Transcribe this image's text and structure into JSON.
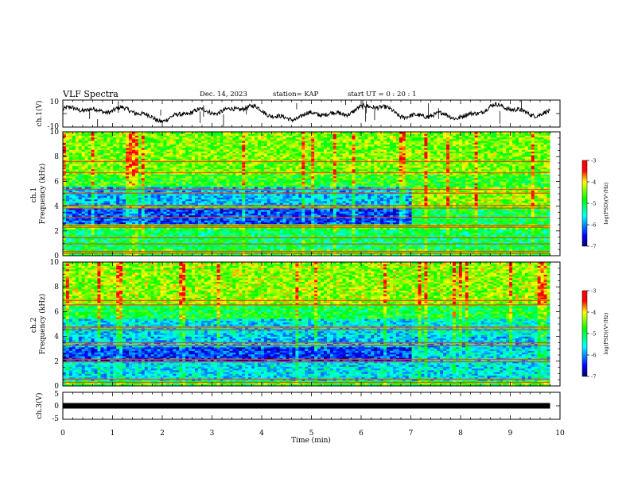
{
  "header": {
    "title": "VLF Spectra",
    "date": "Dec. 14, 2023",
    "station": "station= KAP",
    "start_ut": "start UT =  0 : 20 : 1"
  },
  "chart_data": [
    {
      "type": "line",
      "panel": "ch1-waveform",
      "ylabel": "ch.1(V)",
      "ylim": [
        -10,
        10
      ],
      "yticks": [
        "10",
        "-10"
      ],
      "xlim": [
        0,
        10
      ],
      "data_end_min": 9.8,
      "series_color": "#000000",
      "note_values": "envelope approx. between -6 and 8 V, drifting"
    },
    {
      "type": "heatmap",
      "panel": "ch1-spectrogram",
      "ylabel": "ch.1\nFrequency (kHz)",
      "ylim": [
        0,
        10
      ],
      "yticks": [
        "0",
        "2",
        "4",
        "6",
        "8",
        "10"
      ],
      "xlim": [
        0,
        10
      ],
      "data_end_min": 9.8,
      "break_min": 7.0,
      "colorbar": {
        "label": "log(PSD)(V²/Hz)",
        "range": [
          -7,
          -3
        ],
        "ticks": [
          "-3",
          "-4",
          "-5",
          "-6",
          "-7"
        ],
        "colors": [
          "#000080",
          "#0000ff",
          "#00ffff",
          "#00ff00",
          "#ffff00",
          "#ff0000",
          "#ff0000"
        ]
      }
    },
    {
      "type": "heatmap",
      "panel": "ch2-spectrogram",
      "ylabel": "ch.2\nFrequency (kHz)",
      "ylim": [
        0,
        10
      ],
      "yticks": [
        "0",
        "2",
        "4",
        "6",
        "8",
        "10"
      ],
      "xlim": [
        0,
        10
      ],
      "data_end_min": 9.8,
      "break_min": 7.0,
      "colorbar": {
        "label": "log(PSD)(V²/Hz)",
        "range": [
          -7,
          -3
        ],
        "ticks": [
          "-3",
          "-4",
          "-5",
          "-6",
          "-7"
        ]
      }
    },
    {
      "type": "line",
      "panel": "ch3-waveform",
      "ylabel": "ch.3(V)",
      "ylim": [
        -5,
        5
      ],
      "yticks": [
        "5",
        "0",
        "-5"
      ],
      "xlim": [
        0,
        10
      ],
      "data_end_min": 9.8,
      "level_v": 0,
      "xlabel": "Time (min)",
      "xticks": [
        "0",
        "1",
        "2",
        "3",
        "4",
        "5",
        "6",
        "7",
        "8",
        "9",
        "10"
      ]
    }
  ]
}
